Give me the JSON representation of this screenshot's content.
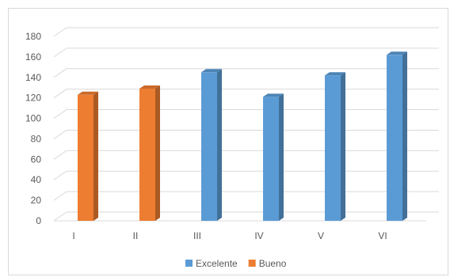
{
  "chart_data": {
    "type": "bar",
    "categories": [
      "I",
      "II",
      "III",
      "IV",
      "V",
      "VI"
    ],
    "values": [
      123,
      129,
      145,
      121,
      142,
      162
    ],
    "point_series": [
      "Bueno",
      "Bueno",
      "Excelente",
      "Excelente",
      "Excelente",
      "Excelente"
    ],
    "series": [
      {
        "name": "Excelente",
        "color": "#5b9bd5"
      },
      {
        "name": "Bueno",
        "color": "#ed7d31"
      }
    ],
    "ylim": [
      0,
      180
    ],
    "yticks": [
      0,
      20,
      40,
      60,
      80,
      100,
      120,
      140,
      160,
      180
    ],
    "grid": true,
    "legend": "bottom",
    "style": "3d-column"
  }
}
